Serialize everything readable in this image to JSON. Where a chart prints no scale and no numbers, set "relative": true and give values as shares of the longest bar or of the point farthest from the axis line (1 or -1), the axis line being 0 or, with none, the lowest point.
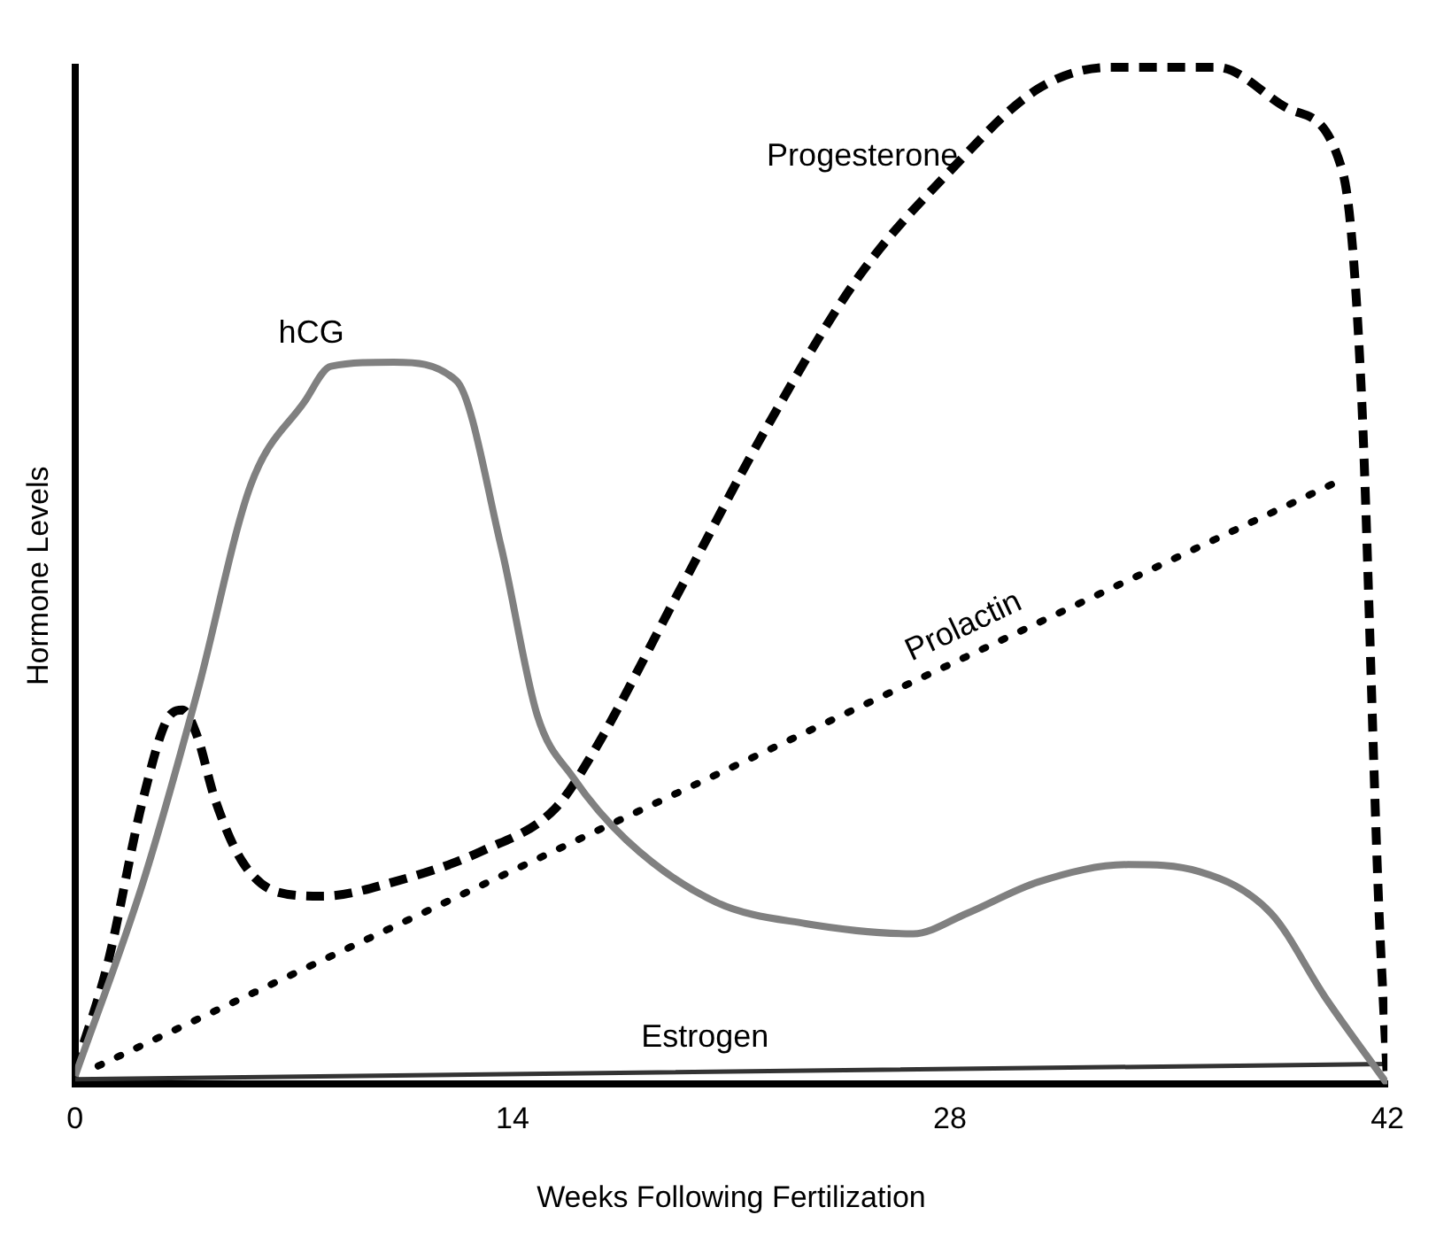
{
  "chart_data": {
    "type": "line",
    "relative": true,
    "xlabel": "Weeks Following Fertilization",
    "ylabel": "Hormone Levels",
    "xlim": [
      0,
      42
    ],
    "xticks": [
      0,
      14,
      28,
      42
    ],
    "grid": false,
    "legend": false,
    "marker": "none",
    "tick_labels": "x",
    "series": [
      {
        "name": "hCG",
        "color": "#808080",
        "line_style": "solid",
        "x": [
          0,
          2.18,
          3.9,
          5.62,
          7.34,
          8.19,
          10.2,
          12.2,
          13.64,
          14.79,
          15.93,
          17.65,
          20.52,
          23.38,
          26.82,
          28.54,
          30.83,
          33.7,
          35.99,
          38.28,
          40.0,
          42
        ],
        "values": [
          0.008,
          0.199,
          0.384,
          0.589,
          0.671,
          0.706,
          0.71,
          0.692,
          0.528,
          0.363,
          0.302,
          0.24,
          0.179,
          0.158,
          0.148,
          0.168,
          0.199,
          0.216,
          0.209,
          0.168,
          0.086,
          0
        ]
      },
      {
        "name": "Progesterone",
        "color": "#000000",
        "line_style": "dashed",
        "x": [
          0,
          1.03,
          2.18,
          3.04,
          3.44,
          3.9,
          4.47,
          5.33,
          6.48,
          7.91,
          10.2,
          13.07,
          15.36,
          16.5,
          19.37,
          22.23,
          25.1,
          27.97,
          30.83,
          33.12,
          36.56,
          38.85,
          40.57,
          41.15,
          41.72,
          42
        ],
        "values": [
          0.014,
          0.117,
          0.281,
          0.363,
          0.368,
          0.343,
          0.281,
          0.22,
          0.189,
          0.185,
          0.199,
          0.23,
          0.271,
          0.322,
          0.487,
          0.651,
          0.795,
          0.897,
          0.979,
          1,
          1,
          0.959,
          0.897,
          0.692,
          0.179,
          0.004
        ]
      },
      {
        "name": "Prolactin",
        "color": "#000000",
        "line_style": "dotted",
        "x": [
          0.74,
          40.57
        ],
        "values": [
          0.018,
          0.595
        ]
      },
      {
        "name": "Estrogen",
        "color": "#333333",
        "line_style": "solid",
        "x": [
          0,
          42
        ],
        "values": [
          0.005,
          0.02
        ]
      }
    ]
  }
}
